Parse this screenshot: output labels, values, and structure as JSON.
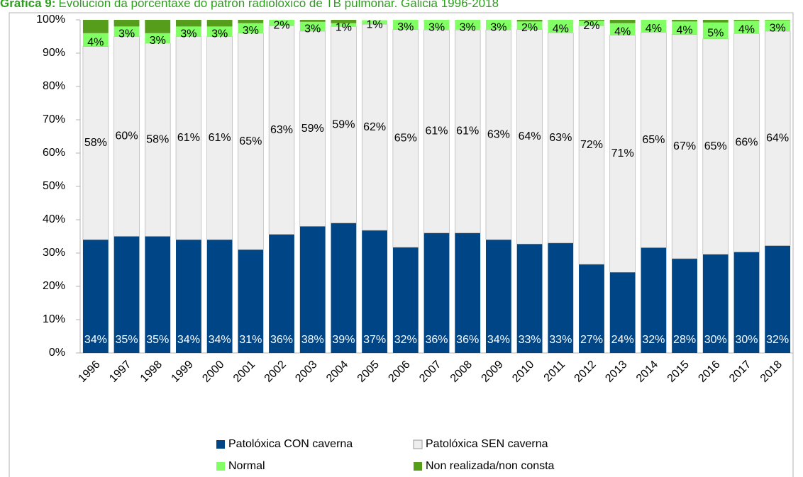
{
  "chart_data": {
    "type": "stacked_bar_100",
    "title_label": "Gráfica 9:",
    "title": "Evolución da porcentaxe do patrón radiolóxico de TB pulmonar. Galicia 1996-2018",
    "categories": [
      "1996",
      "1997",
      "1998",
      "1999",
      "2000",
      "2001",
      "2002",
      "2003",
      "2004",
      "2005",
      "2006",
      "2007",
      "2008",
      "2009",
      "2010",
      "2011",
      "2012",
      "2013",
      "2014",
      "2015",
      "2016",
      "2017",
      "2018"
    ],
    "series": [
      {
        "name": "Patolóxica CON caverna",
        "color": "#004586",
        "values": [
          34,
          35,
          35,
          34,
          34,
          31,
          35.6,
          38,
          39,
          36.8,
          31.7,
          36,
          36,
          34,
          32.7,
          33,
          26.6,
          24.2,
          31.6,
          28.3,
          29.6,
          30.3,
          32.2
        ],
        "value_labels": [
          "34%",
          "35%",
          "35%",
          "34%",
          "34%",
          "31%",
          "36%",
          "38%",
          "39%",
          "37%",
          "32%",
          "36%",
          "36%",
          "34%",
          "33%",
          "33%",
          "27%",
          "24%",
          "32%",
          "28%",
          "30%",
          "30%",
          "32%"
        ]
      },
      {
        "name": "Patolóxica SEN caverna",
        "color": "#eeeeee",
        "values": [
          58,
          60,
          58,
          61,
          61,
          65,
          62.6,
          58.6,
          59,
          61.9,
          65.4,
          61,
          61,
          63,
          64.4,
          63.1,
          71.6,
          71.2,
          64.6,
          67.3,
          64.7,
          65.6,
          64.4
        ],
        "value_labels": [
          "58%",
          "60%",
          "58%",
          "61%",
          "61%",
          "65%",
          "63%",
          "59%",
          "59%",
          "62%",
          "65%",
          "61%",
          "61%",
          "63%",
          "64%",
          "63%",
          "72%",
          "71%",
          "65%",
          "67%",
          "65%",
          "66%",
          "64%"
        ]
      },
      {
        "name": "Normal",
        "color": "#83ff66",
        "values": [
          4,
          3,
          3,
          3,
          3,
          3,
          1.8,
          2.8,
          1,
          1.2,
          2.9,
          3,
          3,
          3,
          2.4,
          3.9,
          1.5,
          3.6,
          3.8,
          3.9,
          4.9,
          3.8,
          3.3
        ],
        "value_labels": [
          "4%",
          "3%",
          "3%",
          "3%",
          "3%",
          "3%",
          "2%",
          "3%",
          "1%",
          "1%",
          "3%",
          "3%",
          "3%",
          "3%",
          "2%",
          "4%",
          "2%",
          "4%",
          "4%",
          "4%",
          "5%",
          "4%",
          "3%"
        ]
      },
      {
        "name": "Non realizada/non consta",
        "color": "#579d1c",
        "values": [
          4,
          2,
          4,
          2,
          2,
          1,
          0,
          0.6,
          1,
          0,
          0,
          0,
          0,
          0,
          0.5,
          0,
          0.3,
          1,
          0,
          0.5,
          0.8,
          0.3,
          0.1
        ]
      }
    ],
    "ylim": [
      0,
      100
    ],
    "yticks": [
      {
        "value": 0,
        "label": "0%"
      },
      {
        "value": 10,
        "label": "10%"
      },
      {
        "value": 20,
        "label": "20%"
      },
      {
        "value": 30,
        "label": "30%"
      },
      {
        "value": 40,
        "label": "40%"
      },
      {
        "value": 50,
        "label": "50%"
      },
      {
        "value": 60,
        "label": "60%"
      },
      {
        "value": 70,
        "label": "70%"
      },
      {
        "value": 80,
        "label": "80%"
      },
      {
        "value": 90,
        "label": "90%"
      },
      {
        "value": 100,
        "label": "100%"
      }
    ]
  }
}
